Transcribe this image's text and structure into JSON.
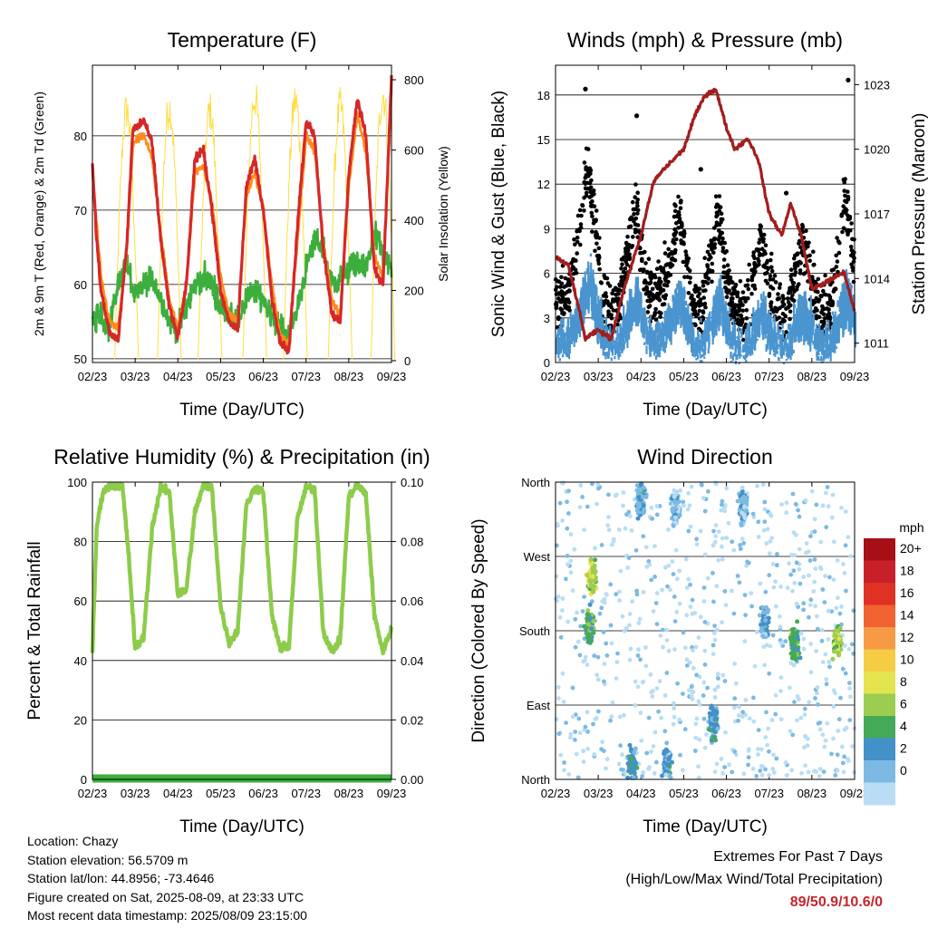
{
  "chart_data": [
    {
      "type": "line",
      "title": "Temperature (F)",
      "xlabel": "Time (Day/UTC)",
      "ylabel": "2m & 9m T (Red, Orange) & 2m Td (Green)",
      "y2label": "Solar Insolation (Yellow)",
      "x_ticks": [
        "02/23",
        "03/23",
        "04/23",
        "05/23",
        "06/23",
        "07/23",
        "08/23",
        "09/23"
      ],
      "y_ticks": [
        "50",
        "60",
        "70",
        "80"
      ],
      "y2_ticks": [
        "0",
        "200",
        "400",
        "600",
        "800"
      ],
      "ylim": [
        49.5,
        89.5
      ],
      "y2lim": [
        0,
        800
      ],
      "grid": true,
      "series": [
        {
          "color": "#d62728",
          "values_x_days": [
            0,
            0.1,
            0.2,
            0.4,
            0.6,
            0.8,
            0.95,
            1.2,
            1.4,
            1.6,
            1.8,
            2,
            2.2,
            2.4,
            2.6,
            2.8,
            3,
            3.2,
            3.4,
            3.6,
            3.8,
            4,
            4.2,
            4.4,
            4.6,
            4.8,
            5,
            5.2,
            5.4,
            5.6,
            5.8,
            6,
            6.2,
            6.4,
            6.6,
            6.8,
            7
          ],
          "values": [
            76,
            66,
            59,
            53.5,
            52.5,
            65,
            81,
            82,
            79,
            66,
            57,
            53,
            60,
            77,
            78,
            70,
            59,
            55,
            54,
            73,
            77,
            70,
            58,
            52,
            51,
            68,
            82,
            80,
            65,
            56,
            55,
            75,
            85,
            80,
            62,
            60,
            88
          ]
        },
        {
          "color": "#ff8c1a",
          "values_x_days": [
            0,
            0.2,
            0.4,
            0.6,
            0.8,
            0.95,
            1.2,
            1.4,
            1.6,
            1.8,
            2,
            2.2,
            2.4,
            2.6,
            2.8,
            3,
            3.2,
            3.4,
            3.6,
            3.8,
            4,
            4.2,
            4.4,
            4.6,
            4.8,
            5,
            5.2,
            5.4,
            5.6,
            5.8,
            6,
            6.2,
            6.4,
            6.6,
            6.8,
            7
          ],
          "values": [
            75,
            61,
            55,
            54,
            64,
            79,
            80,
            77,
            67,
            58,
            54,
            60,
            75,
            76,
            71,
            61,
            56,
            55,
            72,
            75,
            70,
            60,
            53,
            52,
            66,
            80,
            78,
            66,
            58,
            56,
            73,
            83,
            78,
            64,
            61,
            86
          ]
        },
        {
          "color": "#3cae3c",
          "values_x_days": [
            0,
            0.2,
            0.4,
            0.6,
            0.8,
            1,
            1.2,
            1.4,
            1.6,
            1.8,
            2,
            2.2,
            2.4,
            2.6,
            2.8,
            3,
            3.2,
            3.4,
            3.6,
            3.8,
            4,
            4.2,
            4.4,
            4.6,
            4.8,
            5,
            5.2,
            5.4,
            5.6,
            5.8,
            6,
            6.2,
            6.4,
            6.6,
            6.8,
            7
          ],
          "values": [
            55,
            56,
            54,
            60,
            63,
            58,
            60,
            61,
            58,
            55,
            54,
            57,
            60,
            61,
            60,
            57,
            56,
            55,
            58,
            59,
            58,
            56,
            54,
            53,
            57,
            62,
            66,
            65,
            60,
            61,
            62,
            63,
            62,
            67,
            64,
            62
          ]
        },
        {
          "color": "#ffdd44",
          "axis": "right",
          "peak_days": [
            0.8,
            1.8,
            2.75,
            3.8,
            4.75,
            5.8,
            6.8
          ],
          "peak_values": [
            770,
            780,
            770,
            810,
            800,
            780,
            820
          ]
        }
      ]
    },
    {
      "type": "scatter",
      "title": "Winds (mph) & Pressure (mb)",
      "xlabel": "Time (Day/UTC)",
      "ylabel": "Sonic Wind & Gust (Blue, Black)",
      "y2label": "Station Pressure (Maroon)",
      "x_ticks": [
        "02/23",
        "03/23",
        "04/23",
        "05/23",
        "06/23",
        "07/23",
        "08/23",
        "09/23"
      ],
      "y_ticks": [
        "0",
        "3",
        "6",
        "9",
        "12",
        "15",
        "18"
      ],
      "y2_ticks": [
        "1011",
        "1014",
        "1017",
        "1020",
        "1023"
      ],
      "ylim": [
        0,
        18.2
      ],
      "y2lim": [
        1010.1,
        1023.9
      ],
      "grid": true,
      "gust_peaks": [
        {
          "day": 0.7,
          "value": 18.4
        },
        {
          "day": 1.9,
          "value": 16.6
        },
        {
          "day": 3.4,
          "value": 13.0
        },
        {
          "day": 5.4,
          "value": 11.4
        },
        {
          "day": 6.85,
          "value": 19.0
        }
      ],
      "pressure_series": {
        "color": "#a31d1d",
        "x_days": [
          0,
          0.3,
          0.5,
          0.7,
          1,
          1.3,
          1.6,
          2,
          2.3,
          2.5,
          2.75,
          3,
          3.25,
          3.5,
          3.75,
          4,
          4.2,
          4.5,
          4.75,
          5,
          5.3,
          5.5,
          5.75,
          6,
          6.3,
          6.5,
          6.75,
          7
        ],
        "values": [
          1015,
          1014.6,
          1013,
          1011.2,
          1011.6,
          1011.2,
          1013.5,
          1016,
          1018.5,
          1019,
          1019.5,
          1020,
          1021.5,
          1022.5,
          1022.8,
          1021,
          1020,
          1020.5,
          1019.5,
          1017,
          1016,
          1017.5,
          1016,
          1013.5,
          1013.8,
          1014,
          1014.3,
          1012.5
        ]
      }
    },
    {
      "type": "line",
      "title": "Relative Humidity (%) & Precipitation (in)",
      "xlabel": "Time (Day/UTC)",
      "ylabel": "Percent & Total Rainfall",
      "x_ticks": [
        "02/23",
        "03/23",
        "04/23",
        "05/23",
        "06/23",
        "07/23",
        "08/23",
        "09/23"
      ],
      "y_ticks": [
        "0",
        "20",
        "40",
        "60",
        "80",
        "100"
      ],
      "y2_ticks": [
        "0.00",
        "0.02",
        "0.04",
        "0.06",
        "0.08",
        "0.10"
      ],
      "ylim": [
        0,
        100
      ],
      "y2lim": [
        0,
        0.1
      ],
      "grid": true,
      "series": [
        {
          "color": "#8ccc4a",
          "x_days": [
            0,
            0.1,
            0.25,
            0.45,
            0.7,
            0.85,
            1,
            1.2,
            1.4,
            1.6,
            1.8,
            2,
            2.2,
            2.4,
            2.6,
            2.8,
            3,
            3.2,
            3.4,
            3.6,
            3.8,
            4,
            4.2,
            4.4,
            4.6,
            4.8,
            5,
            5.2,
            5.4,
            5.6,
            5.8,
            6,
            6.2,
            6.4,
            6.6,
            6.8,
            7
          ],
          "values": [
            43,
            85,
            97,
            99,
            99,
            75,
            44,
            48,
            85,
            98,
            97,
            62,
            64,
            90,
            99,
            98,
            58,
            46,
            50,
            92,
            98,
            97,
            55,
            44,
            45,
            88,
            98,
            98,
            50,
            43,
            47,
            95,
            99,
            96,
            55,
            43,
            51
          ]
        },
        {
          "color": "#3cae3c",
          "x_days": [
            0,
            7
          ],
          "values": [
            0,
            0
          ]
        }
      ]
    },
    {
      "type": "scatter",
      "title": "Wind Direction",
      "xlabel": "Time (Day/UTC)",
      "ylabel": "Direction (Colored By Speed)",
      "x_ticks": [
        "02/23",
        "03/23",
        "04/23",
        "05/23",
        "06/23",
        "07/23",
        "08/23",
        "09/23"
      ],
      "y_ticks": [
        "North",
        "East",
        "South",
        "West",
        "North"
      ],
      "ylim": [
        0,
        360
      ],
      "grid": true,
      "legend": {
        "title": "mph",
        "labels": [
          "20+",
          "18",
          "16",
          "14",
          "12",
          "10",
          "8",
          "6",
          "4",
          "2",
          "0"
        ],
        "colors": [
          "#a50f15",
          "#c8202a",
          "#e03125",
          "#f06230",
          "#f79a45",
          "#f5cc44",
          "#e4e450",
          "#9ccc50",
          "#44aa5a",
          "#4490c8",
          "#7cbae4",
          "#b8ddf4"
        ]
      },
      "clusters": [
        {
          "day": 0.8,
          "dir": 185,
          "speed": 6
        },
        {
          "day": 0.85,
          "dir": 245,
          "speed": 9
        },
        {
          "day": 1.8,
          "dir": 20,
          "speed": 4
        },
        {
          "day": 2.0,
          "dir": 340,
          "speed": 3
        },
        {
          "day": 2.6,
          "dir": 20,
          "speed": 3
        },
        {
          "day": 2.8,
          "dir": 330,
          "speed": 2
        },
        {
          "day": 3.7,
          "dir": 70,
          "speed": 4
        },
        {
          "day": 4.4,
          "dir": 330,
          "speed": 2
        },
        {
          "day": 4.9,
          "dir": 190,
          "speed": 3
        },
        {
          "day": 5.6,
          "dir": 165,
          "speed": 6
        },
        {
          "day": 6.6,
          "dir": 165,
          "speed": 8
        }
      ]
    }
  ],
  "info": {
    "location": "Location: Chazy",
    "elevation": "Station elevation: 56.5709 m",
    "latlon": "Station lat/lon: 44.8956; -73.4646",
    "created": "Figure created on Sat, 2025-08-09, at 23:33 UTC",
    "recent": "Most recent data timestamp: 2025/08/09 23:15:00"
  },
  "extremes": {
    "line1": "Extremes For Past 7 Days",
    "line2": "(High/Low/Max Wind/Total Precipitation)",
    "values": "89/50.9/10.6/0",
    "values_color": "#c4262c"
  }
}
